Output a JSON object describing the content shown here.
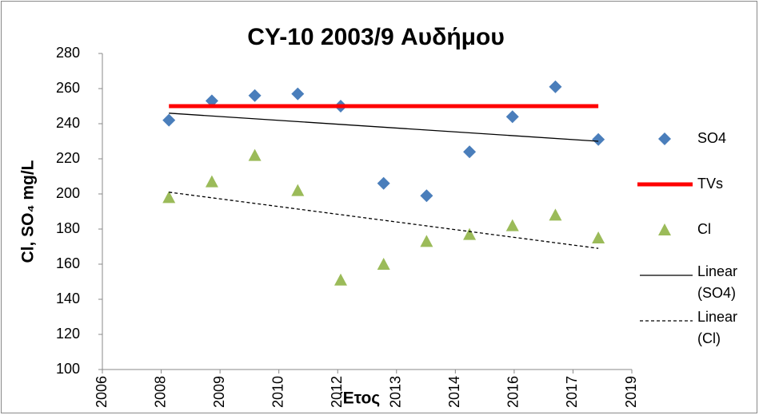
{
  "chart_data": {
    "type": "scatter",
    "title": "CY-10 2003/9 Αυδήμου",
    "x_label": "Έτος",
    "y_label": "Cl, SO₄ mg/L",
    "xlim": [
      2006.7,
      2019.03
    ],
    "xticks": [
      {
        "value": 2006.7,
        "label": "2006"
      },
      {
        "value": 2008.07,
        "label": "2008"
      },
      {
        "value": 2009.44,
        "label": "2009"
      },
      {
        "value": 2010.81,
        "label": "2010"
      },
      {
        "value": 2012.18,
        "label": "2012"
      },
      {
        "value": 2013.55,
        "label": "2013"
      },
      {
        "value": 2014.92,
        "label": "2014"
      },
      {
        "value": 2016.29,
        "label": "2016"
      },
      {
        "value": 2017.66,
        "label": "2017"
      },
      {
        "value": 2019.03,
        "label": "2019"
      }
    ],
    "ylim": [
      100,
      280
    ],
    "yticks": [
      100,
      120,
      140,
      160,
      180,
      200,
      220,
      240,
      260,
      280
    ],
    "grid": false,
    "legend": "right",
    "series": [
      {
        "name": "SO4",
        "color": "#4a7ebb",
        "marker": "diamond",
        "x": [
          2008.25,
          2009.25,
          2010.25,
          2011.25,
          2012.25,
          2013.25,
          2014.25,
          2015.25,
          2016.25,
          2017.25,
          2018.25
        ],
        "values": [
          242,
          253,
          256,
          257,
          250,
          206,
          199,
          224,
          244,
          261,
          231
        ]
      },
      {
        "name": "TVs",
        "color": "#ff0000",
        "marker": "line",
        "x": [
          2008.25,
          2018.25
        ],
        "values": [
          250,
          250
        ]
      },
      {
        "name": "Cl",
        "color": "#9bbb59",
        "marker": "triangle",
        "x": [
          2008.25,
          2009.25,
          2010.25,
          2011.25,
          2012.25,
          2013.25,
          2014.25,
          2015.25,
          2016.25,
          2017.25,
          2018.25
        ],
        "values": [
          198,
          207,
          222,
          202,
          151,
          160,
          173,
          177,
          182,
          188,
          175
        ]
      },
      {
        "name": "Linear (SO4)",
        "color": "#000000",
        "marker": "trend",
        "x": [
          2008.25,
          2018.25
        ],
        "values": [
          246,
          230
        ]
      },
      {
        "name": "Linear (Cl)",
        "color": "#000000",
        "marker": "trend-dashed",
        "x": [
          2008.25,
          2018.25
        ],
        "values": [
          201,
          169
        ]
      }
    ]
  }
}
